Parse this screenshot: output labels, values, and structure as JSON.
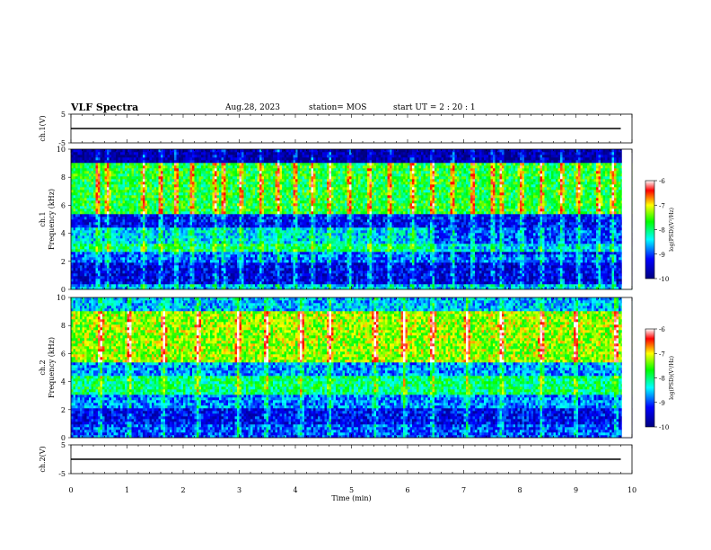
{
  "header": {
    "title": "VLF Spectra",
    "date": "Aug.28, 2023",
    "station": "station= MOS",
    "start_ut": "start  UT =   2  : 20 : 1"
  },
  "colors": {
    "colormap": [
      "#000080",
      "#0000ff",
      "#00ffff",
      "#00ff00",
      "#ffff00",
      "#ff0000",
      "#ffffff"
    ]
  },
  "chart_data": [
    {
      "type": "line",
      "ylabel": "ch.1(V)",
      "ylim": [
        -5,
        5
      ],
      "yticks": [
        "5",
        "-5"
      ],
      "x": [
        0,
        9.8
      ],
      "values": [
        0,
        0
      ]
    },
    {
      "type": "heatmap",
      "ylabel_line1": "ch.1",
      "ylabel_line2": "Frequency (kHz)",
      "ylim": [
        0,
        10
      ],
      "yticks": [
        "0",
        "2",
        "4",
        "6",
        "8",
        "10"
      ],
      "colorbar": {
        "label": "log(PSD)(V²/Hz)",
        "range": [
          -10,
          -6
        ],
        "ticks": [
          "-6",
          "-7",
          "-8",
          "-9",
          "-10"
        ]
      },
      "bands": [
        {
          "from_khz": 0.0,
          "to_khz": 0.4,
          "log_psd": -8.6
        },
        {
          "from_khz": 0.4,
          "to_khz": 2.0,
          "log_psd": -9.4
        },
        {
          "from_khz": 2.0,
          "to_khz": 2.6,
          "log_psd": -8.9
        },
        {
          "from_khz": 2.6,
          "to_khz": 3.2,
          "log_psd": -8.0
        },
        {
          "from_khz": 3.2,
          "to_khz": 4.4,
          "log_psd": -8.5
        },
        {
          "from_khz": 4.4,
          "to_khz": 5.4,
          "log_psd": -9.3
        },
        {
          "from_khz": 5.4,
          "to_khz": 9.0,
          "log_psd": -7.8
        },
        {
          "from_khz": 9.0,
          "to_khz": 10.0,
          "log_psd": -9.8
        }
      ],
      "bursts_min": [
        0.45,
        0.62,
        1.25,
        1.55,
        1.82,
        2.1,
        2.5,
        2.65,
        2.95,
        3.3,
        3.6,
        3.9,
        4.2,
        4.5,
        4.85,
        5.2,
        5.55,
        5.95,
        6.3,
        6.65,
        7.0,
        7.35,
        7.5,
        7.85,
        8.2,
        8.55,
        8.85,
        9.2,
        9.45,
        9.7
      ]
    },
    {
      "type": "heatmap",
      "ylabel_line1": "ch.2",
      "ylabel_line2": "Frequency (kHz)",
      "ylim": [
        0,
        10
      ],
      "yticks": [
        "0",
        "2",
        "4",
        "6",
        "8",
        "10"
      ],
      "colorbar": {
        "label": "log(PSD)(V²/Hz)",
        "range": [
          -10,
          -6
        ],
        "ticks": [
          "-6",
          "-7",
          "-8",
          "-9",
          "-10"
        ]
      },
      "bands": [
        {
          "from_khz": 0.0,
          "to_khz": 1.0,
          "log_psd": -9.0
        },
        {
          "from_khz": 1.0,
          "to_khz": 2.2,
          "log_psd": -9.3
        },
        {
          "from_khz": 2.2,
          "to_khz": 3.0,
          "log_psd": -8.8
        },
        {
          "from_khz": 3.0,
          "to_khz": 4.4,
          "log_psd": -8.0
        },
        {
          "from_khz": 4.4,
          "to_khz": 5.4,
          "log_psd": -8.7
        },
        {
          "from_khz": 5.4,
          "to_khz": 9.0,
          "log_psd": -7.3
        },
        {
          "from_khz": 9.0,
          "to_khz": 10.0,
          "log_psd": -8.6
        }
      ],
      "bursts_min": [
        0.5,
        1.0,
        1.6,
        2.2,
        2.9,
        3.4,
        4.0,
        4.5,
        5.3,
        5.8,
        6.3,
        6.9,
        7.5,
        8.2,
        8.8,
        9.5
      ]
    },
    {
      "type": "line",
      "ylabel": "ch.2(V)",
      "ylim": [
        -5,
        5
      ],
      "yticks": [
        "5",
        "-5"
      ],
      "x": [
        0,
        9.8
      ],
      "values": [
        0,
        0
      ],
      "xlabel": "Time  (min)",
      "xlim": [
        0,
        10
      ],
      "xticks": [
        "0",
        "1",
        "2",
        "3",
        "4",
        "5",
        "6",
        "7",
        "8",
        "9",
        "10"
      ]
    }
  ]
}
